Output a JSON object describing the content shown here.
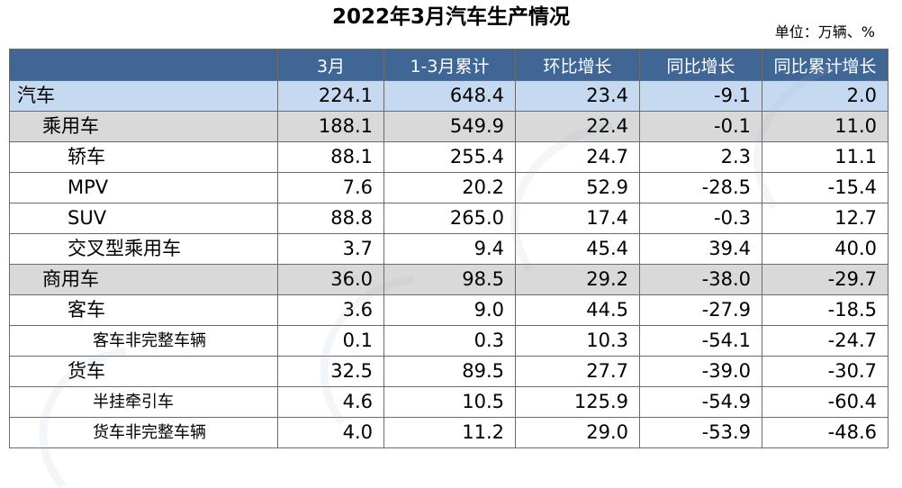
{
  "title": "2022年3月汽车生产情况",
  "unit": "单位：万辆、%",
  "columns": [
    "",
    "3月",
    "1-3月累计",
    "环比增长",
    "同比增长",
    "同比累计增长"
  ],
  "rows": [
    {
      "name": "汽车",
      "level": 0,
      "v": [
        "224.1",
        "648.4",
        "23.4",
        "-9.1",
        "2.0"
      ]
    },
    {
      "name": "乘用车",
      "level": 1,
      "v": [
        "188.1",
        "549.9",
        "22.4",
        "-0.1",
        "11.0"
      ]
    },
    {
      "name": "轿车",
      "level": 2,
      "v": [
        "88.1",
        "255.4",
        "24.7",
        "2.3",
        "11.1"
      ]
    },
    {
      "name": "MPV",
      "level": 2,
      "v": [
        "7.6",
        "20.2",
        "52.9",
        "-28.5",
        "-15.4"
      ]
    },
    {
      "name": "SUV",
      "level": 2,
      "v": [
        "88.8",
        "265.0",
        "17.4",
        "-0.3",
        "12.7"
      ]
    },
    {
      "name": "交叉型乘用车",
      "level": 2,
      "v": [
        "3.7",
        "9.4",
        "45.4",
        "39.4",
        "40.0"
      ]
    },
    {
      "name": "商用车",
      "level": 1,
      "v": [
        "36.0",
        "98.5",
        "29.2",
        "-38.0",
        "-29.7"
      ]
    },
    {
      "name": "客车",
      "level": 2,
      "v": [
        "3.6",
        "9.0",
        "44.5",
        "-27.9",
        "-18.5"
      ]
    },
    {
      "name": "客车非完整车辆",
      "level": 3,
      "v": [
        "0.1",
        "0.3",
        "10.3",
        "-54.1",
        "-24.7"
      ]
    },
    {
      "name": "货车",
      "level": 2,
      "v": [
        "32.5",
        "89.5",
        "27.7",
        "-39.0",
        "-30.7"
      ]
    },
    {
      "name": "半挂牵引车",
      "level": 3,
      "v": [
        "4.6",
        "10.5",
        "125.9",
        "-54.9",
        "-60.4"
      ]
    },
    {
      "name": "货车非完整车辆",
      "level": 3,
      "v": [
        "4.0",
        "11.2",
        "29.0",
        "-53.9",
        "-48.6"
      ]
    }
  ],
  "colors": {
    "header_bg": "#3f6694",
    "total_row_bg": "#c5d9f1",
    "category_row_bg": "#d9d9d9"
  },
  "watermark_icon": "caam-logo-watermark"
}
